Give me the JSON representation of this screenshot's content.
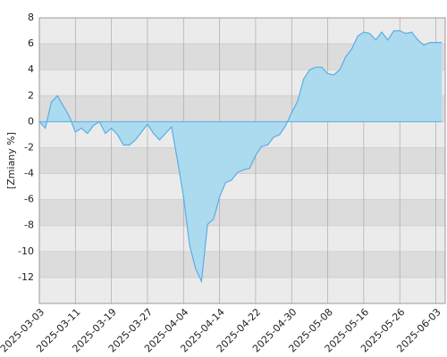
{
  "chart_data": {
    "type": "area",
    "y_label": "[Zmiany %]",
    "categories": [
      "2025-03-03",
      null,
      null,
      null,
      null,
      null,
      "2025-03-11",
      null,
      null,
      null,
      null,
      null,
      "2025-03-19",
      null,
      null,
      null,
      null,
      null,
      "2025-03-27",
      null,
      null,
      null,
      null,
      null,
      "2025-04-04",
      null,
      null,
      null,
      null,
      null,
      "2025-04-14",
      null,
      null,
      null,
      null,
      null,
      "2025-04-22",
      null,
      null,
      null,
      null,
      null,
      "2025-04-30",
      null,
      null,
      null,
      null,
      null,
      "2025-05-08",
      null,
      null,
      null,
      null,
      null,
      "2025-05-16",
      null,
      null,
      null,
      null,
      null,
      "2025-05-26",
      null,
      null,
      null,
      null,
      null,
      "2025-06-03",
      null
    ],
    "values": [
      0,
      -0.5,
      1.5,
      2.0,
      1.2,
      0.4,
      -0.8,
      -0.5,
      -0.9,
      -0.3,
      0,
      -0.9,
      -0.5,
      -1.0,
      -1.8,
      -1.8,
      -1.4,
      -0.8,
      -0.2,
      -0.9,
      -1.4,
      -0.9,
      -0.4,
      -3.0,
      -5.8,
      -9.5,
      -11.3,
      -12.3,
      -7.9,
      -7.5,
      -5.8,
      -4.7,
      -4.5,
      -3.9,
      -3.7,
      -3.6,
      -2.6,
      -1.9,
      -1.8,
      -1.2,
      -1.0,
      -0.3,
      0.7,
      1.6,
      3.3,
      4.0,
      4.2,
      4.2,
      3.7,
      3.6,
      4.0,
      5.0,
      5.6,
      6.6,
      6.9,
      6.8,
      6.3,
      6.9,
      6.3,
      7.0,
      7.0,
      6.8,
      6.9,
      6.3,
      5.9,
      6.1,
      6.1,
      6.1
    ],
    "color": "#5aaee6",
    "fill": "#acdaee",
    "ylim": [
      -14,
      8
    ],
    "yticks": [
      -12,
      -10,
      -8,
      -6,
      -4,
      -2,
      0,
      2,
      4,
      6,
      8
    ],
    "grid": true
  }
}
